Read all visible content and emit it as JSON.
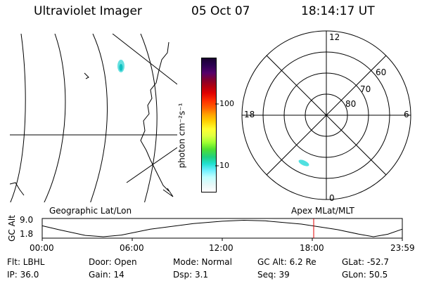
{
  "header": {
    "instrument": "Ultraviolet Imager",
    "date": "05 Oct 07",
    "time": "18:14:17 UT"
  },
  "colorbar": {
    "unit_label": "photon cm⁻²s⁻¹",
    "tick_100": "100",
    "tick_10": "10",
    "colors": [
      "#1a0030",
      "#2a0050",
      "#55006a",
      "#800030",
      "#b00010",
      "#e00000",
      "#ff3000",
      "#ff6000",
      "#ffa000",
      "#ffd000",
      "#ffff30",
      "#e0ff40",
      "#a0ff30",
      "#50e030",
      "#20d080",
      "#20e0d0",
      "#70f0ff",
      "#c0ffff",
      "#e8f8f8",
      "#ffffff"
    ]
  },
  "polar": {
    "mlt_12": "12",
    "mlt_18": "18",
    "mlt_6": "6",
    "mlt_0": "0",
    "lat_60": "60",
    "lat_70": "70",
    "lat_80": "80"
  },
  "plot": {
    "left_label": "Geographic Lat/Lon",
    "right_label": "Apex MLat/MLT",
    "ylabel": "GC Alt",
    "ytick_top": "9.0",
    "ytick_bottom": "1.8",
    "xticks": [
      "00:00",
      "06:00",
      "12:00",
      "18:00",
      "23:59"
    ],
    "marker_color": "#e00000"
  },
  "status": {
    "flt": "Flt: LBHL",
    "ip": "IP: 36.0",
    "door": "Door: Open",
    "gain": "Gain: 14",
    "mode": "Mode: Normal",
    "dsp": "Dsp:     3.1",
    "gcalt": "GC Alt: 6.2 Re",
    "seq": "Seq: 39",
    "glat": "GLat: -52.7",
    "glon": "GLon:  50.5"
  }
}
